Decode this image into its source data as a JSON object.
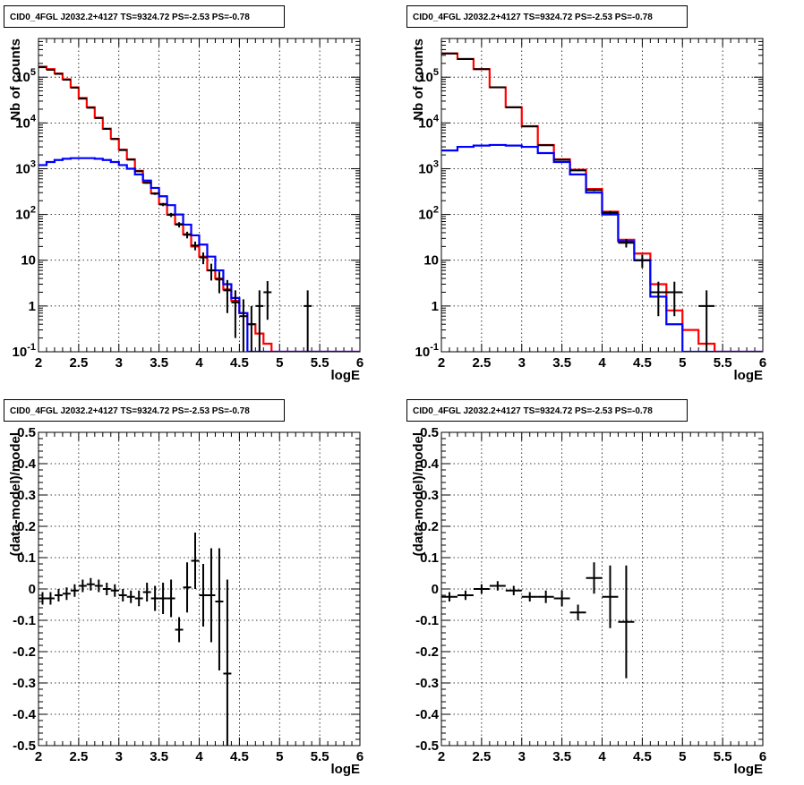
{
  "chart_data": [
    {
      "type": "line",
      "title": "CID0_4FGL J2032.2+4127 TS=9324.72 PS=-2.53 PS=-0.78",
      "xlabel": "logE",
      "ylabel": "Nb of counts",
      "xlim": [
        2,
        6
      ],
      "ylim": [
        0.1,
        700000
      ],
      "yscale": "log",
      "grid": true,
      "x_ticks": [
        "2",
        "2.5",
        "3",
        "3.5",
        "4",
        "4.5",
        "5",
        "5.5",
        "6"
      ],
      "y_ticks": [
        "10^-1",
        "1",
        "10",
        "10^2",
        "10^3",
        "10^4",
        "10^5"
      ],
      "bin_width": 0.1,
      "series": [
        {
          "color": "#ff0000",
          "style": "step",
          "x": [
            2.0,
            2.1,
            2.2,
            2.3,
            2.4,
            2.5,
            2.6,
            2.7,
            2.8,
            2.9,
            3.0,
            3.1,
            3.2,
            3.3,
            3.4,
            3.5,
            3.6,
            3.7,
            3.8,
            3.9,
            4.0,
            4.1,
            4.2,
            4.3,
            4.4,
            4.5,
            4.6,
            4.7,
            4.8,
            4.9,
            5.0,
            5.1,
            5.2,
            5.3,
            5.4,
            5.5,
            5.6,
            5.7,
            5.8,
            5.9
          ],
          "values": [
            170000,
            150000,
            120000,
            90000,
            60000,
            35000,
            22000,
            13000,
            7500,
            4500,
            2600,
            1600,
            900,
            500,
            290,
            170,
            100,
            62,
            37,
            20,
            12,
            6,
            4,
            2.3,
            1.3,
            0.7,
            0.4,
            0.25,
            0.15,
            0.1,
            0.1,
            0.1,
            0.1,
            0.1,
            0.1,
            0.1,
            0.1,
            0.1,
            0.1,
            0.1
          ]
        },
        {
          "color": "#0000ff",
          "style": "step",
          "x": [
            2.0,
            2.1,
            2.2,
            2.3,
            2.4,
            2.5,
            2.6,
            2.7,
            2.8,
            2.9,
            3.0,
            3.1,
            3.2,
            3.3,
            3.4,
            3.5,
            3.6,
            3.7,
            3.8,
            3.9,
            4.0,
            4.1,
            4.2,
            4.3,
            4.4,
            4.5,
            4.6,
            4.7,
            4.8,
            4.9,
            5.0,
            5.1,
            5.2,
            5.3,
            5.4,
            5.5,
            5.6,
            5.7,
            5.8,
            5.9
          ],
          "values": [
            1200,
            1400,
            1550,
            1650,
            1700,
            1700,
            1700,
            1650,
            1550,
            1400,
            1200,
            1000,
            750,
            550,
            380,
            250,
            160,
            100,
            60,
            35,
            22,
            12,
            6,
            3,
            1.5,
            0.7,
            0.1,
            0.1,
            0.1,
            0.1,
            0.1,
            0.1,
            0.1,
            0.1,
            0.1,
            0.1,
            0.1,
            0.1,
            0.1,
            0.1
          ]
        },
        {
          "color": "#000000",
          "style": "error",
          "x": [
            2.05,
            2.15,
            2.25,
            2.35,
            2.45,
            2.55,
            2.65,
            2.75,
            2.85,
            2.95,
            3.05,
            3.15,
            3.25,
            3.35,
            3.45,
            3.55,
            3.65,
            3.75,
            3.85,
            3.95,
            4.05,
            4.15,
            4.25,
            4.35,
            4.45,
            4.55,
            4.65,
            4.75,
            4.85,
            5.35
          ],
          "values": [
            165000,
            145000,
            118000,
            88000,
            59000,
            34000,
            21500,
            12800,
            7400,
            4450,
            2550,
            1580,
            880,
            490,
            285,
            165,
            98,
            60,
            36,
            21,
            11.5,
            6,
            3.8,
            2.2,
            1.2,
            0.6,
            0.4,
            1,
            2,
            1
          ],
          "err_low": [
            400,
            380,
            340,
            300,
            240,
            180,
            150,
            110,
            90,
            70,
            50,
            40,
            30,
            22,
            17,
            13,
            10,
            8,
            6,
            4.5,
            3.3,
            2.4,
            1.9,
            1.5,
            1.0,
            0.5,
            0.3,
            0.9,
            1.5,
            0.9
          ],
          "err_high": [
            400,
            380,
            340,
            300,
            240,
            180,
            150,
            110,
            90,
            70,
            50,
            40,
            30,
            22,
            17,
            13,
            10,
            8,
            6,
            4.5,
            3.3,
            2.4,
            1.9,
            1.5,
            1.0,
            0.8,
            0.6,
            1.2,
            1.5,
            1.2
          ]
        }
      ]
    },
    {
      "type": "line",
      "title": "CID0_4FGL J2032.2+4127 TS=9324.72 PS=-2.53 PS=-0.78",
      "xlabel": "logE",
      "ylabel": "Nb of counts",
      "xlim": [
        2,
        6
      ],
      "ylim": [
        0.1,
        700000
      ],
      "yscale": "log",
      "grid": true,
      "x_ticks": [
        "2",
        "2.5",
        "3",
        "3.5",
        "4",
        "4.5",
        "5",
        "5.5",
        "6"
      ],
      "y_ticks": [
        "10^-1",
        "1",
        "10",
        "10^2",
        "10^3",
        "10^4",
        "10^5"
      ],
      "bin_width": 0.2,
      "series": [
        {
          "color": "#ff0000",
          "style": "step",
          "x": [
            2.0,
            2.2,
            2.4,
            2.6,
            2.8,
            3.0,
            3.2,
            3.4,
            3.6,
            3.8,
            4.0,
            4.2,
            4.4,
            4.6,
            4.8,
            5.0,
            5.2,
            5.4,
            5.6,
            5.8
          ],
          "values": [
            330000,
            250000,
            150000,
            60000,
            22000,
            8500,
            3300,
            1600,
            950,
            360,
            115,
            28,
            14,
            3,
            0.8,
            0.3,
            0.15,
            0.1,
            0.1,
            0.1
          ]
        },
        {
          "color": "#0000ff",
          "style": "step",
          "x": [
            2.0,
            2.2,
            2.4,
            2.6,
            2.8,
            3.0,
            3.2,
            3.4,
            3.6,
            3.8,
            4.0,
            4.2,
            4.4,
            4.6,
            4.8,
            5.0,
            5.2,
            5.4,
            5.6,
            5.8
          ],
          "values": [
            2500,
            3000,
            3200,
            3300,
            3200,
            3000,
            2200,
            1400,
            750,
            300,
            100,
            26,
            10,
            1.6,
            0.4,
            0.1,
            0.1,
            0.1,
            0.1,
            0.1
          ]
        },
        {
          "color": "#000000",
          "style": "error",
          "x": [
            2.1,
            2.3,
            2.5,
            2.7,
            2.9,
            3.1,
            3.3,
            3.5,
            3.7,
            3.9,
            4.1,
            4.3,
            4.5,
            4.7,
            4.9,
            5.3
          ],
          "values": [
            330000,
            248000,
            150000,
            60000,
            22000,
            8400,
            3250,
            1570,
            920,
            340,
            110,
            24,
            10,
            2,
            2,
            1
          ],
          "err_low": [
            570,
            500,
            390,
            245,
            150,
            90,
            57,
            40,
            30,
            18,
            10,
            5,
            3.2,
            1.4,
            1.4,
            0.9
          ],
          "err_high": [
            570,
            500,
            390,
            245,
            150,
            90,
            57,
            40,
            30,
            18,
            10,
            5,
            3.2,
            1.4,
            1.4,
            1.2
          ]
        }
      ]
    },
    {
      "type": "scatter",
      "title": "CID0_4FGL J2032.2+4127 TS=9324.72 PS=-2.53 PS=-0.78",
      "xlabel": "logE",
      "ylabel": "(data-model)/model",
      "xlim": [
        2,
        6
      ],
      "ylim": [
        -0.5,
        0.5
      ],
      "grid": true,
      "x_ticks": [
        "2",
        "2.5",
        "3",
        "3.5",
        "4",
        "4.5",
        "5",
        "5.5",
        "6"
      ],
      "y_ticks": [
        "-0.5",
        "-0.4",
        "-0.3",
        "-0.2",
        "-0.1",
        "0",
        "0.1",
        "0.2",
        "0.3",
        "0.4",
        "0.5"
      ],
      "bin_width": 0.1,
      "series": [
        {
          "color": "#000000",
          "style": "error",
          "x": [
            2.05,
            2.15,
            2.25,
            2.35,
            2.45,
            2.55,
            2.65,
            2.75,
            2.85,
            2.95,
            3.05,
            3.15,
            3.25,
            3.35,
            3.45,
            3.55,
            3.65,
            3.75,
            3.85,
            3.95,
            4.05,
            4.15,
            4.25,
            4.35
          ],
          "values": [
            -0.03,
            -0.03,
            -0.02,
            -0.015,
            -0.005,
            0.01,
            0.015,
            0.01,
            0.0,
            -0.005,
            -0.02,
            -0.025,
            -0.03,
            -0.01,
            -0.03,
            -0.03,
            -0.03,
            -0.13,
            0.005,
            0.09,
            -0.02,
            -0.02,
            -0.04,
            -0.27
          ],
          "err_low": [
            0.02,
            0.02,
            0.02,
            0.02,
            0.02,
            0.02,
            0.02,
            0.02,
            0.02,
            0.02,
            0.02,
            0.02,
            0.025,
            0.03,
            0.04,
            0.05,
            0.06,
            0.04,
            0.08,
            0.09,
            0.1,
            0.15,
            0.22,
            0.3
          ],
          "err_high": [
            0.02,
            0.02,
            0.02,
            0.02,
            0.02,
            0.02,
            0.02,
            0.02,
            0.02,
            0.02,
            0.02,
            0.02,
            0.025,
            0.03,
            0.04,
            0.05,
            0.06,
            0.04,
            0.08,
            0.09,
            0.1,
            0.15,
            0.17,
            0.3
          ]
        }
      ]
    },
    {
      "type": "scatter",
      "title": "CID0_4FGL J2032.2+4127 TS=9324.72 PS=-2.53 PS=-0.78",
      "xlabel": "logE",
      "ylabel": "(data-model)/model",
      "xlim": [
        2,
        6
      ],
      "ylim": [
        -0.5,
        0.5
      ],
      "grid": true,
      "x_ticks": [
        "2",
        "2.5",
        "3",
        "3.5",
        "4",
        "4.5",
        "5",
        "5.5",
        "6"
      ],
      "y_ticks": [
        "-0.5",
        "-0.4",
        "-0.3",
        "-0.2",
        "-0.1",
        "0",
        "0.1",
        "0.2",
        "0.3",
        "0.4",
        "0.5"
      ],
      "bin_width": 0.2,
      "series": [
        {
          "color": "#000000",
          "style": "error",
          "x": [
            2.1,
            2.3,
            2.5,
            2.7,
            2.9,
            3.1,
            3.3,
            3.5,
            3.7,
            3.9,
            4.1,
            4.3
          ],
          "values": [
            -0.025,
            -0.02,
            0.0,
            0.01,
            -0.005,
            -0.025,
            -0.025,
            -0.03,
            -0.075,
            0.035,
            -0.025,
            -0.105
          ],
          "err_low": [
            0.015,
            0.015,
            0.015,
            0.015,
            0.015,
            0.015,
            0.02,
            0.025,
            0.025,
            0.05,
            0.1,
            0.18
          ],
          "err_high": [
            0.015,
            0.015,
            0.015,
            0.015,
            0.015,
            0.015,
            0.02,
            0.025,
            0.025,
            0.05,
            0.1,
            0.18
          ]
        }
      ]
    }
  ]
}
